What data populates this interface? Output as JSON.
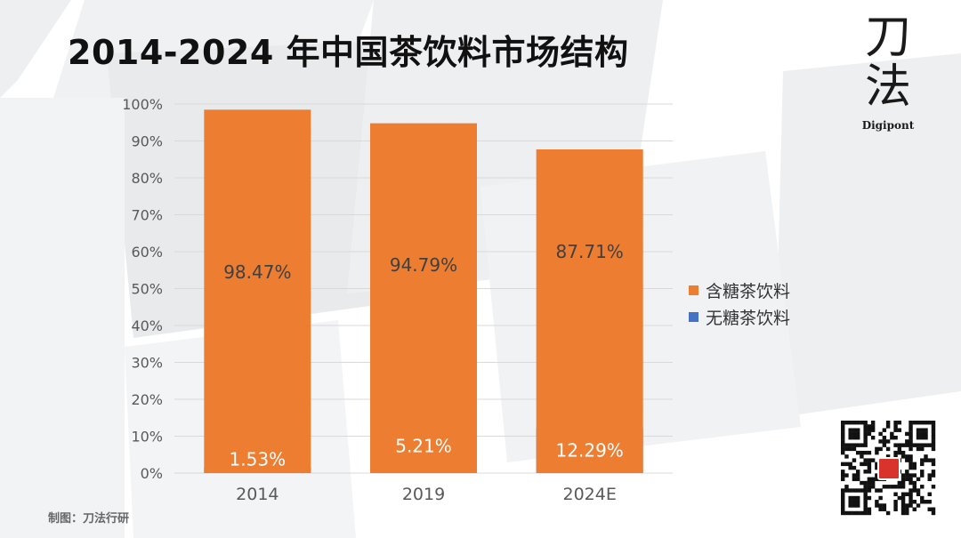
{
  "title": "2014-2024 年中国茶饮料市场结构",
  "brand": {
    "mark_line1": "刀",
    "mark_line2": "法",
    "name": "Digipont"
  },
  "source": "制图：刀法行研",
  "qr": {
    "badge_icon": "brand-seal-icon"
  },
  "colors": {
    "sugared": "#ED7D31",
    "sugarfree": "#4472C4",
    "grid": "#D9D9D9",
    "axis_text": "#595959"
  },
  "chart_data": {
    "type": "bar",
    "stacked": true,
    "title": "2014-2024 年中国茶饮料市场结构",
    "xlabel": "",
    "ylabel": "",
    "ylim": [
      0,
      100
    ],
    "y_ticks": [
      "0%",
      "10%",
      "20%",
      "30%",
      "40%",
      "50%",
      "60%",
      "70%",
      "80%",
      "90%",
      "100%"
    ],
    "categories": [
      "2014",
      "2019",
      "2024E"
    ],
    "series": [
      {
        "name": "无糖茶饮料",
        "values": [
          1.53,
          5.21,
          12.29
        ],
        "labels": [
          "1.53%",
          "5.21%",
          "12.29%"
        ]
      },
      {
        "name": "含糖茶饮料",
        "values": [
          98.47,
          94.79,
          87.71
        ],
        "labels": [
          "98.47%",
          "94.79%",
          "87.71%"
        ]
      }
    ],
    "legend": [
      "含糖茶饮料",
      "无糖茶饮料"
    ],
    "legend_position": "right",
    "grid": true
  }
}
